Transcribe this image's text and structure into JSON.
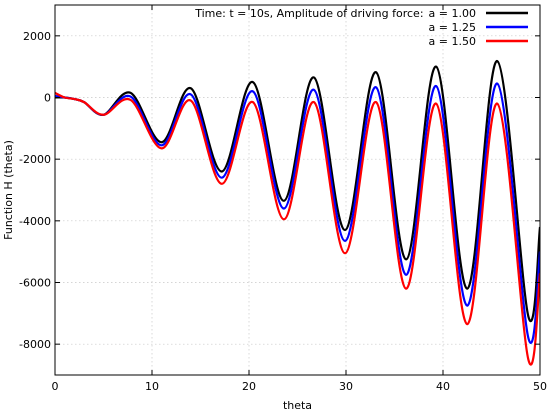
{
  "chart_data": {
    "type": "line",
    "title": "Time: t = 10s, Amplitude of driving force:",
    "xlabel": "theta",
    "ylabel": "Function H (theta)",
    "xlim": [
      0,
      50
    ],
    "ylim": [
      -9000,
      3000
    ],
    "xticks": [
      0,
      10,
      20,
      30,
      40,
      50
    ],
    "yticks": [
      -8000,
      -6000,
      -4000,
      -2000,
      0,
      2000
    ],
    "xtick_labels": [
      "0",
      "10",
      "20",
      "30",
      "40",
      "50"
    ],
    "ytick_labels": [
      "-8000",
      "-6000",
      "-4000",
      "-2000",
      "0",
      "2000"
    ],
    "grid": true,
    "legend_position": "top-right",
    "series": [
      {
        "name": "a = 1.00",
        "color": "#000000",
        "x": [
          0,
          1,
          2,
          3,
          5,
          7.8,
          11,
          14,
          17.2,
          20.4,
          23.6,
          26.7,
          29.9,
          33.1,
          36.2,
          39.3,
          42.5,
          45.6,
          48.8,
          50
        ],
        "y": [
          0,
          0,
          -50,
          -150,
          -560,
          150,
          -1450,
          300,
          -2400,
          500,
          -3350,
          650,
          -4300,
          820,
          -5250,
          1000,
          -6200,
          1180,
          -7100,
          -4200
        ]
      },
      {
        "name": "a = 1.25",
        "color": "#0000ff",
        "x": [
          0,
          1,
          2,
          3,
          5,
          7.8,
          11,
          14,
          17.2,
          20.4,
          23.6,
          26.7,
          29.9,
          33.1,
          36.2,
          39.3,
          42.5,
          45.6,
          48.8,
          50
        ],
        "y": [
          50,
          0,
          -50,
          -150,
          -560,
          30,
          -1550,
          100,
          -2600,
          200,
          -3600,
          250,
          -4650,
          330,
          -5750,
          370,
          -6750,
          450,
          -7800,
          -5000
        ]
      },
      {
        "name": "a = 1.50",
        "color": "#ff0000",
        "x": [
          0,
          1,
          2,
          3,
          5,
          7.8,
          11,
          14,
          17.2,
          20.4,
          23.6,
          26.7,
          29.9,
          33.1,
          36.2,
          39.3,
          42.5,
          45.6,
          48.8,
          50
        ],
        "y": [
          150,
          0,
          -50,
          -150,
          -560,
          -80,
          -1650,
          -100,
          -2800,
          -150,
          -3950,
          -150,
          -5050,
          -150,
          -6200,
          -200,
          -7350,
          -200,
          -8500,
          -5700
        ]
      }
    ]
  }
}
